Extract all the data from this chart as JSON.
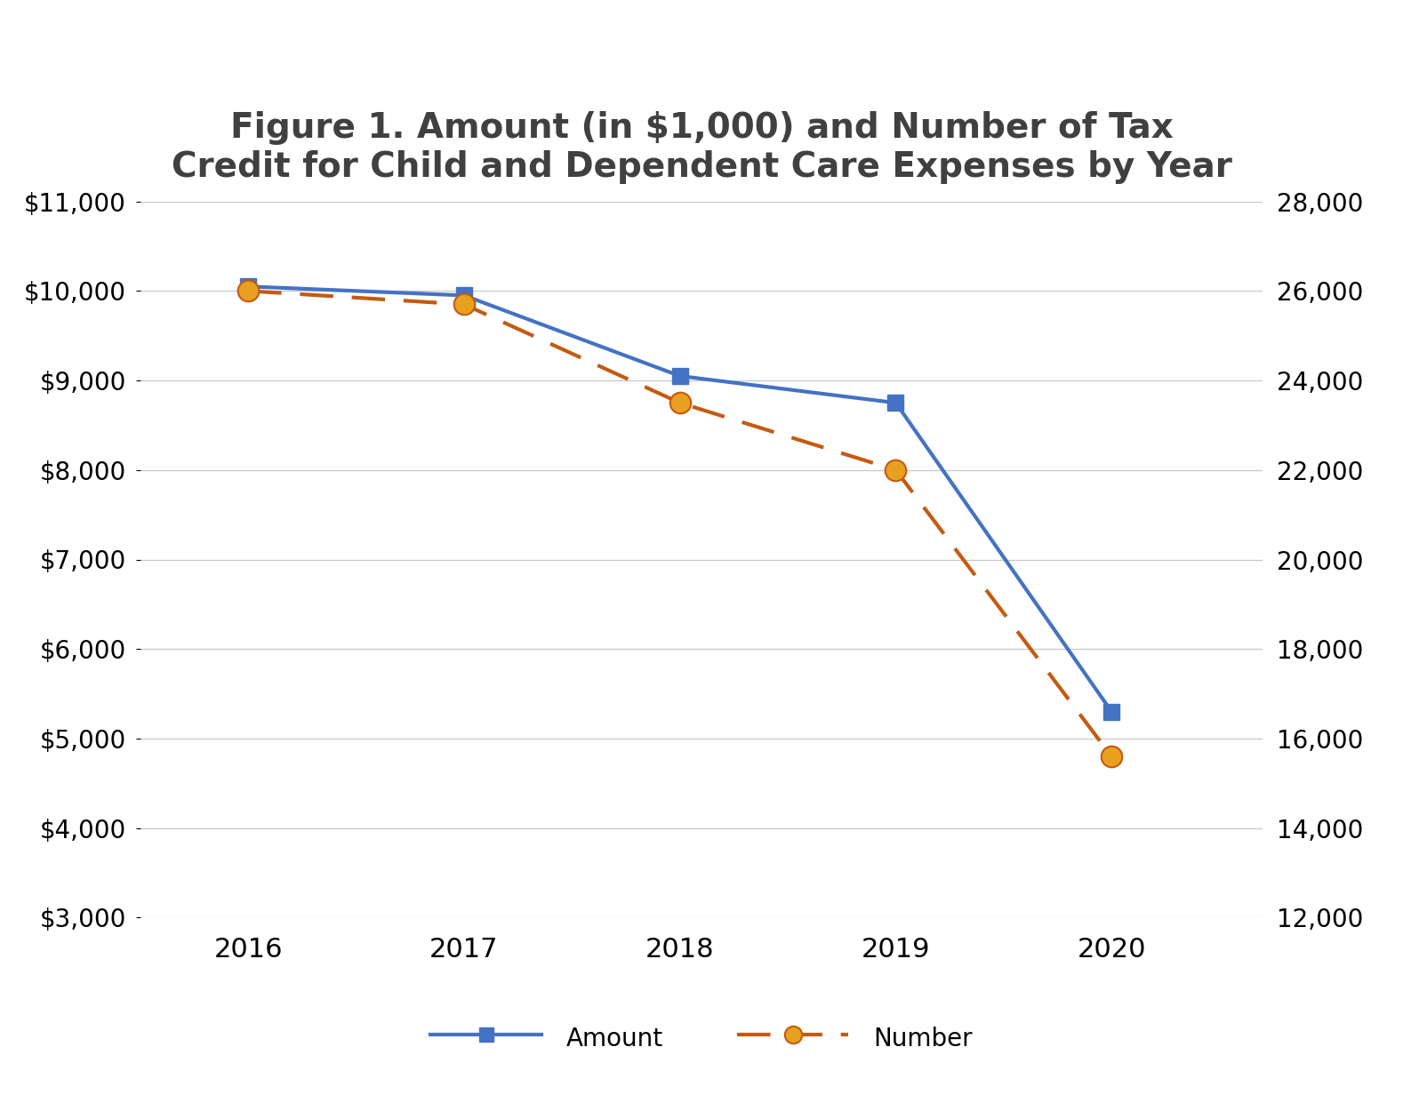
{
  "title": "Figure 1. Amount (in $1,000) and Number of Tax\nCredit for Child and Dependent Care Expenses by Year",
  "years": [
    2016,
    2017,
    2018,
    2019,
    2020
  ],
  "amount": [
    10050,
    9950,
    9050,
    8750,
    5300
  ],
  "number": [
    26000,
    25700,
    23500,
    22000,
    15600
  ],
  "amount_color": "#4472C4",
  "number_color": "#C55A11",
  "number_marker_color": "#E8A020",
  "ylim_left": [
    3000,
    11000
  ],
  "ylim_right": [
    12000,
    28000
  ],
  "yticks_left": [
    3000,
    4000,
    5000,
    6000,
    7000,
    8000,
    9000,
    10000,
    11000
  ],
  "yticks_right": [
    12000,
    14000,
    16000,
    18000,
    20000,
    22000,
    24000,
    26000,
    28000
  ],
  "background_color": "#ffffff",
  "legend_amount": "Amount",
  "legend_number": "Number",
  "title_fontsize": 28,
  "tick_fontsize": 20,
  "legend_fontsize": 20,
  "xlim": [
    2015.5,
    2020.7
  ]
}
